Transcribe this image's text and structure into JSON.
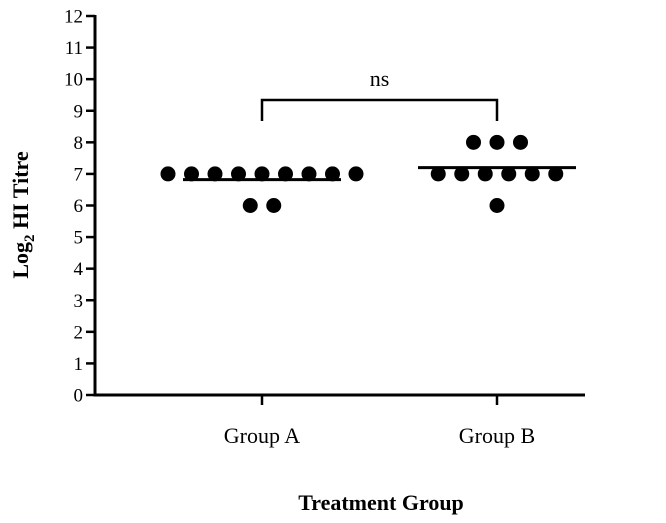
{
  "chart_data": {
    "type": "scatter",
    "title": "",
    "xlabel": "Treatment Group",
    "ylabel_main": "Log",
    "ylabel_sub": "2",
    "ylabel_rest": " HI Titre",
    "ylim": [
      0,
      12
    ],
    "yticks": [
      "0",
      "1",
      "2",
      "3",
      "4",
      "5",
      "6",
      "7",
      "8",
      "9",
      "10",
      "11",
      "12"
    ],
    "categories": [
      "Group A",
      "Group B"
    ],
    "series": [
      {
        "category": "Group A",
        "values": [
          7,
          7,
          7,
          7,
          7,
          7,
          7,
          7,
          7,
          6,
          6
        ],
        "mean": 6.82
      },
      {
        "category": "Group B",
        "values": [
          8,
          8,
          8,
          7,
          7,
          7,
          7,
          7,
          7,
          6
        ],
        "mean": 7.2
      }
    ],
    "comparison": {
      "label": "ns",
      "from": "Group A",
      "to": "Group B"
    },
    "grid": false,
    "legend": "none"
  }
}
